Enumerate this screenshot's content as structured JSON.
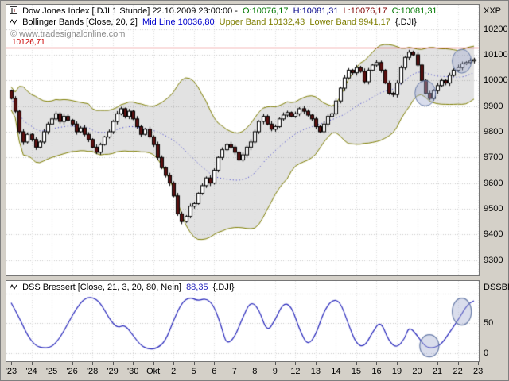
{
  "window": {
    "bg": "#d4d0c8"
  },
  "price_panel": {
    "title": {
      "symbol": "Dow Jones Index [.DJI  1 Stunde] 22.10.2009 23:00:00 -",
      "ohlc": [
        {
          "text": "O:10076,17",
          "color": "#007700"
        },
        {
          "text": "H:10081,31",
          "color": "#000088"
        },
        {
          "text": "L:10076,17",
          "color": "#800000"
        },
        {
          "text": "C:10081,31",
          "color": "#007700"
        }
      ]
    },
    "indicator_line": {
      "name": "Bollinger Bands [Close, 20, 2]",
      "segments": [
        {
          "text": "Mid Line 10036,80",
          "color": "#0000cc"
        },
        {
          "text": "Upper Band 10132,43",
          "color": "#7e7e00"
        },
        {
          "text": "Lower Band 9941,17",
          "color": "#7e7e00"
        },
        {
          "text": "{.DJI}",
          "color": "#000000"
        }
      ]
    },
    "watermark": "© www.tradesignalonline.com",
    "axis_caption": "XXP",
    "y_labels": [
      "10200",
      "10100",
      "10000",
      "9900",
      "9800",
      "9700",
      "9600",
      "9500",
      "9400",
      "9300"
    ],
    "price_line_label": "10126,71"
  },
  "dss_panel": {
    "title": {
      "name": "DSS Bressert [Close, 21, 3, 20, 80, Nein]",
      "value": "88,35",
      "suffix": "{.DJI}"
    },
    "axis_caption": "DSSBR",
    "y_labels": [
      "50",
      "0"
    ]
  },
  "x_axis": {
    "labels": [
      "'23",
      "'24",
      "'25",
      "'26",
      "'28",
      "'29",
      "'30",
      "Okt",
      "2",
      "5",
      "6",
      "7",
      "8",
      "9",
      "12",
      "13",
      "14",
      "15",
      "16",
      "19",
      "20",
      "21",
      "22",
      "23"
    ]
  },
  "chart_data": [
    {
      "type": "candlestick",
      "title": "Dow Jones Index [.DJI] 1 Stunde",
      "ylabel": "XXP",
      "ylim": [
        9240,
        10295
      ],
      "y_ticks": [
        9300,
        9400,
        9500,
        9600,
        9700,
        9800,
        9900,
        10000,
        10100,
        10200
      ],
      "x_day_labels": [
        "'23",
        "'24",
        "'25",
        "'26",
        "'28",
        "'29",
        "'30",
        "Okt",
        "2",
        "5",
        "6",
        "7",
        "8",
        "9",
        "12",
        "13",
        "14",
        "15",
        "16",
        "19",
        "20",
        "21",
        "22",
        "23"
      ],
      "candles_per_day": 5,
      "close_path": [
        9930,
        9880,
        9800,
        9760,
        9790,
        9770,
        9740,
        9760,
        9800,
        9830,
        9850,
        9870,
        9840,
        9860,
        9845,
        9830,
        9800,
        9815,
        9790,
        9770,
        9740,
        9720,
        9750,
        9780,
        9800,
        9840,
        9870,
        9890,
        9860,
        9880,
        9850,
        9820,
        9790,
        9810,
        9780,
        9750,
        9700,
        9660,
        9630,
        9600,
        9550,
        9480,
        9450,
        9470,
        9510,
        9520,
        9560,
        9590,
        9620,
        9600,
        9650,
        9700,
        9730,
        9750,
        9740,
        9720,
        9690,
        9710,
        9740,
        9760,
        9800,
        9840,
        9860,
        9830,
        9810,
        9820,
        9850,
        9865,
        9875,
        9860,
        9870,
        9890,
        9880,
        9865,
        9850,
        9820,
        9800,
        9830,
        9860,
        9870,
        9920,
        9970,
        10010,
        10040,
        10030,
        10050,
        10035,
        9995,
        10040,
        10060,
        10070,
        10040,
        9990,
        9950,
        9945,
        9990,
        10050,
        10090,
        10110,
        10100,
        10060,
        10000,
        9950,
        9930,
        9960,
        9980,
        10000,
        9990,
        10020,
        10040,
        10050,
        10065,
        10070,
        10076.17,
        10081.31
      ],
      "last_candle": {
        "open": 10076.17,
        "high": 10081.31,
        "low": 10076.17,
        "close": 10081.31,
        "time": "22.10.2009 23:00:00"
      },
      "overlays": {
        "bollinger": {
          "source": "Close",
          "period": 20,
          "deviation": 2,
          "mid": 10036.8,
          "upper": 10132.43,
          "lower": 9941.17
        }
      },
      "hline": {
        "value": 10126.71,
        "color": "#dd0000",
        "label": "10126,71"
      },
      "ellipses": [
        {
          "index": 102,
          "price": 9950,
          "rx": 13,
          "ry": 16
        },
        {
          "index": 111,
          "price": 10075,
          "rx": 12,
          "ry": 15
        }
      ],
      "colors": {
        "up_candle": "#ffffff",
        "down_candle": "#5a1010",
        "candle_outline": "#000000",
        "band_line": "#7e7e00",
        "band_fill": "rgba(125,125,125,0.22)",
        "mid_line": "#3030cc",
        "grid": "#c9c9c9",
        "vgrid": "#dedede",
        "alert_line": "#dd0000",
        "ellipse_fill": "rgba(165,175,210,0.42)",
        "ellipse_stroke": "#667aa8",
        "background": "#ffffff"
      }
    },
    {
      "type": "line",
      "name": "DSS Bressert [Close, 21, 3, 20, 80, Nein]",
      "last_value": 88.35,
      "ylim": [
        -14,
        122
      ],
      "y_ticks": [
        0,
        50,
        100
      ],
      "line_color": "#2525bb",
      "points": [
        [
          0,
          85
        ],
        [
          2,
          60
        ],
        [
          4,
          30
        ],
        [
          6,
          12
        ],
        [
          8,
          8
        ],
        [
          10,
          10
        ],
        [
          12,
          25
        ],
        [
          14,
          50
        ],
        [
          16,
          75
        ],
        [
          18,
          92
        ],
        [
          20,
          95
        ],
        [
          22,
          85
        ],
        [
          24,
          60
        ],
        [
          26,
          42
        ],
        [
          28,
          48
        ],
        [
          30,
          30
        ],
        [
          32,
          12
        ],
        [
          34,
          6
        ],
        [
          36,
          8
        ],
        [
          38,
          20
        ],
        [
          40,
          55
        ],
        [
          42,
          85
        ],
        [
          44,
          95
        ],
        [
          46,
          88
        ],
        [
          48,
          93
        ],
        [
          50,
          80
        ],
        [
          52,
          40
        ],
        [
          53,
          15
        ],
        [
          55,
          25
        ],
        [
          57,
          60
        ],
        [
          59,
          88
        ],
        [
          61,
          75
        ],
        [
          63,
          35
        ],
        [
          65,
          55
        ],
        [
          67,
          85
        ],
        [
          69,
          80
        ],
        [
          71,
          40
        ],
        [
          73,
          12
        ],
        [
          75,
          30
        ],
        [
          77,
          70
        ],
        [
          79,
          90
        ],
        [
          81,
          88
        ],
        [
          83,
          50
        ],
        [
          85,
          15
        ],
        [
          87,
          10
        ],
        [
          89,
          35
        ],
        [
          91,
          55
        ],
        [
          93,
          20
        ],
        [
          95,
          8
        ],
        [
          97,
          25
        ],
        [
          98,
          45
        ],
        [
          100,
          30
        ],
        [
          102,
          10
        ],
        [
          104,
          8
        ],
        [
          106,
          15
        ],
        [
          108,
          35
        ],
        [
          110,
          55
        ],
        [
          112,
          78
        ],
        [
          113,
          85
        ],
        [
          114,
          88.35
        ]
      ],
      "ellipses": [
        {
          "index": 103,
          "value": 12,
          "rx": 12,
          "ry": 14
        },
        {
          "index": 111,
          "value": 70,
          "rx": 12,
          "ry": 17
        }
      ]
    }
  ]
}
